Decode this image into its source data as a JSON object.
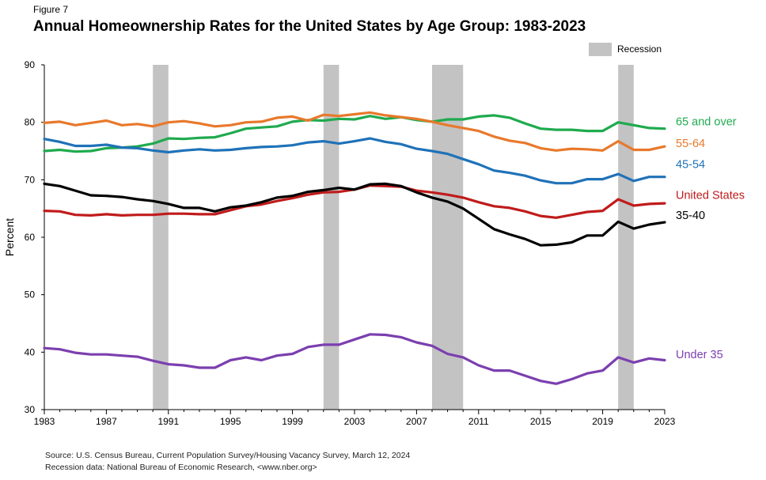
{
  "figure_label": "Figure 7",
  "source_line1": "Source: U.S. Census Bureau, Current Population Survey/Housing Vacancy Survey, March 12, 2024",
  "source_line2": "Recession data: National Bureau of Economic Research, <www.nber.org>",
  "chart_data": {
    "type": "line",
    "title": "Annual Homeownership Rates for the United States by Age Group: 1983-2023",
    "xlabel": "",
    "ylabel": "Percent",
    "xlim": [
      1983,
      2023
    ],
    "ylim": [
      30,
      90
    ],
    "x_ticks": [
      1983,
      1987,
      1991,
      1995,
      1999,
      2003,
      2007,
      2011,
      2015,
      2019,
      2023
    ],
    "y_ticks": [
      30,
      40,
      50,
      60,
      70,
      80,
      90
    ],
    "grid": false,
    "legend": {
      "label": "Recession",
      "placement": "top-right",
      "color": "#c3c3c3"
    },
    "recessions": [
      [
        1990,
        1991
      ],
      [
        2001,
        2002
      ],
      [
        2008,
        2010
      ],
      [
        2020,
        2021
      ]
    ],
    "x": [
      1983,
      1984,
      1985,
      1986,
      1987,
      1988,
      1989,
      1990,
      1991,
      1992,
      1993,
      1994,
      1995,
      1996,
      1997,
      1998,
      1999,
      2000,
      2001,
      2002,
      2003,
      2004,
      2005,
      2006,
      2007,
      2008,
      2009,
      2010,
      2011,
      2012,
      2013,
      2014,
      2015,
      2016,
      2017,
      2018,
      2019,
      2020,
      2021,
      2022,
      2023
    ],
    "series": [
      {
        "name": "65 and over",
        "color": "#1faa4e",
        "values": [
          75.0,
          75.2,
          74.9,
          75.0,
          75.5,
          75.6,
          75.8,
          76.3,
          77.2,
          77.1,
          77.3,
          77.4,
          78.1,
          78.9,
          79.1,
          79.3,
          80.1,
          80.4,
          80.3,
          80.6,
          80.5,
          81.1,
          80.6,
          80.9,
          80.4,
          80.1,
          80.5,
          80.5,
          81.0,
          81.2,
          80.8,
          79.8,
          78.9,
          78.7,
          78.7,
          78.5,
          78.5,
          80.0,
          79.5,
          79.0,
          78.9
        ]
      },
      {
        "name": "55-64",
        "color": "#e8792b",
        "values": [
          79.9,
          80.1,
          79.5,
          79.9,
          80.3,
          79.5,
          79.7,
          79.3,
          80.0,
          80.2,
          79.8,
          79.3,
          79.5,
          80.0,
          80.1,
          80.8,
          81.0,
          80.3,
          81.3,
          81.1,
          81.4,
          81.7,
          81.2,
          80.9,
          80.6,
          80.1,
          79.5,
          79.0,
          78.5,
          77.5,
          76.8,
          76.4,
          75.5,
          75.1,
          75.4,
          75.3,
          75.1,
          76.7,
          75.2,
          75.2,
          75.8
        ]
      },
      {
        "name": "45-54",
        "color": "#1f72b8",
        "values": [
          77.1,
          76.6,
          75.9,
          75.9,
          76.1,
          75.6,
          75.5,
          75.1,
          74.8,
          75.1,
          75.3,
          75.1,
          75.2,
          75.5,
          75.7,
          75.8,
          76.0,
          76.5,
          76.7,
          76.3,
          76.7,
          77.2,
          76.6,
          76.2,
          75.4,
          75.0,
          74.5,
          73.6,
          72.7,
          71.6,
          71.2,
          70.7,
          69.9,
          69.4,
          69.4,
          70.1,
          70.1,
          71.0,
          69.8,
          70.5,
          70.5
        ]
      },
      {
        "name": "United States",
        "color": "#c01b1b",
        "values": [
          64.6,
          64.5,
          63.9,
          63.8,
          64.0,
          63.8,
          63.9,
          63.9,
          64.1,
          64.1,
          64.0,
          64.0,
          64.7,
          65.4,
          65.7,
          66.3,
          66.8,
          67.4,
          67.8,
          67.9,
          68.3,
          69.0,
          68.9,
          68.8,
          68.1,
          67.8,
          67.4,
          66.9,
          66.1,
          65.4,
          65.1,
          64.5,
          63.7,
          63.4,
          63.9,
          64.4,
          64.6,
          66.6,
          65.5,
          65.8,
          65.9
        ]
      },
      {
        "name": "35-40",
        "color": "#000000",
        "values": [
          69.3,
          68.9,
          68.1,
          67.3,
          67.2,
          67.0,
          66.6,
          66.3,
          65.8,
          65.1,
          65.1,
          64.5,
          65.2,
          65.5,
          66.1,
          66.9,
          67.2,
          67.9,
          68.2,
          68.6,
          68.3,
          69.2,
          69.3,
          68.9,
          67.8,
          66.9,
          66.2,
          65.0,
          63.2,
          61.4,
          60.5,
          59.7,
          58.6,
          58.7,
          59.1,
          60.3,
          60.3,
          62.7,
          61.5,
          62.2,
          62.6
        ]
      },
      {
        "name": "Under 35",
        "color": "#7b3faf",
        "values": [
          40.7,
          40.5,
          39.9,
          39.6,
          39.6,
          39.4,
          39.2,
          38.5,
          37.9,
          37.7,
          37.3,
          37.3,
          38.6,
          39.1,
          38.6,
          39.4,
          39.7,
          40.9,
          41.3,
          41.3,
          42.2,
          43.1,
          43.0,
          42.6,
          41.7,
          41.1,
          39.7,
          39.1,
          37.7,
          36.8,
          36.8,
          35.9,
          35.0,
          34.5,
          35.3,
          36.3,
          36.8,
          39.1,
          38.2,
          38.9,
          38.6
        ]
      }
    ]
  }
}
